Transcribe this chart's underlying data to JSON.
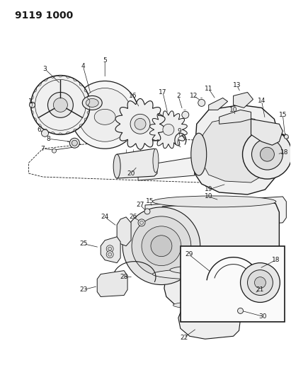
{
  "title": "9119 1000",
  "bg_color": "#ffffff",
  "line_color": "#1a1a1a",
  "title_fontsize": 10,
  "label_fontsize": 6.5,
  "fig_width": 4.11,
  "fig_height": 5.33,
  "dpi": 100
}
